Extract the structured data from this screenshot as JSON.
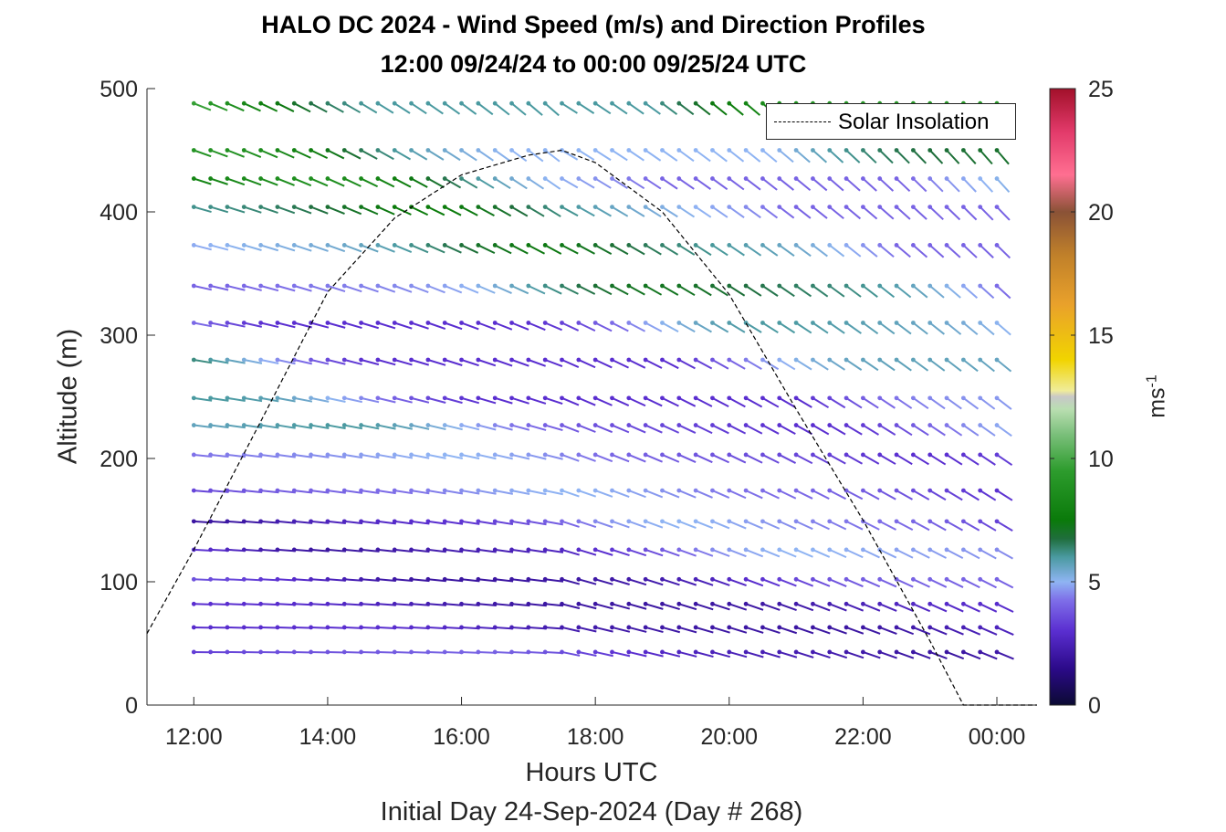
{
  "chart_data": {
    "type": "wind_barb_profile",
    "title": "HALO DC 2024 - Wind Speed (m/s) and Direction Profiles",
    "subtitle": "12:00 09/24/24 to 00:00 09/25/24  UTC",
    "xlabel": "Hours UTC",
    "x_sublabel": "Initial Day 24-Sep-2024 (Day # 268)",
    "ylabel": "Altitude (m)",
    "xlim": [
      11.3,
      24.6
    ],
    "ylim": [
      0,
      500
    ],
    "x_ticks": [
      {
        "value": 12,
        "label": "12:00"
      },
      {
        "value": 14,
        "label": "14:00"
      },
      {
        "value": 16,
        "label": "16:00"
      },
      {
        "value": 18,
        "label": "18:00"
      },
      {
        "value": 20,
        "label": "20:00"
      },
      {
        "value": 22,
        "label": "22:00"
      },
      {
        "value": 24,
        "label": "00:00"
      }
    ],
    "y_ticks": [
      {
        "value": 0,
        "label": "0"
      },
      {
        "value": 100,
        "label": "100"
      },
      {
        "value": 200,
        "label": "200"
      },
      {
        "value": 300,
        "label": "300"
      },
      {
        "value": 400,
        "label": "400"
      },
      {
        "value": 500,
        "label": "500"
      }
    ],
    "colorbar": {
      "label": "ms",
      "label_exponent": "-1",
      "range": [
        0,
        25
      ],
      "ticks": [
        {
          "value": 0,
          "label": "0"
        },
        {
          "value": 5,
          "label": "5"
        },
        {
          "value": 10,
          "label": "10"
        },
        {
          "value": 15,
          "label": "15"
        },
        {
          "value": 20,
          "label": "20"
        },
        {
          "value": 25,
          "label": "25"
        }
      ]
    },
    "legend": {
      "entries": [
        "Solar Insolation"
      ],
      "location": "top-right"
    },
    "insolation_curve": {
      "style": "dashed-black",
      "points": [
        [
          11.3,
          58
        ],
        [
          12.0,
          126
        ],
        [
          13.0,
          230
        ],
        [
          14.0,
          335
        ],
        [
          15.0,
          395
        ],
        [
          16.0,
          430
        ],
        [
          17.0,
          446
        ],
        [
          17.5,
          450
        ],
        [
          18.0,
          440
        ],
        [
          19.0,
          400
        ],
        [
          20.0,
          333
        ],
        [
          21.0,
          240
        ],
        [
          22.0,
          150
        ],
        [
          23.0,
          52
        ],
        [
          23.5,
          0
        ],
        [
          24.6,
          0
        ]
      ]
    },
    "altitudes_m": [
      43,
      63,
      82,
      102,
      126,
      149,
      174,
      203,
      227,
      249,
      280,
      310,
      340,
      373,
      404,
      427,
      450,
      488
    ],
    "time_range_h": [
      12.0,
      24.0
    ],
    "time_step_h": 0.25,
    "wind_profile_summary": {
      "barbs_per_row": 49,
      "speed_ranges_by_altitude": [
        {
          "altitude_m": 43,
          "speed_ms": [
            2,
            4
          ]
        },
        {
          "altitude_m": 63,
          "speed_ms": [
            2,
            3
          ]
        },
        {
          "altitude_m": 82,
          "speed_ms": [
            2,
            3
          ]
        },
        {
          "altitude_m": 102,
          "speed_ms": [
            2,
            4
          ]
        },
        {
          "altitude_m": 126,
          "speed_ms": [
            2,
            5
          ]
        },
        {
          "altitude_m": 149,
          "speed_ms": [
            2,
            5
          ]
        },
        {
          "altitude_m": 174,
          "speed_ms": [
            3,
            5
          ]
        },
        {
          "altitude_m": 203,
          "speed_ms": [
            3,
            5
          ]
        },
        {
          "altitude_m": 227,
          "speed_ms": [
            3,
            6
          ]
        },
        {
          "altitude_m": 249,
          "speed_ms": [
            3,
            6
          ]
        },
        {
          "altitude_m": 280,
          "speed_ms": [
            3,
            7
          ]
        },
        {
          "altitude_m": 310,
          "speed_ms": [
            3,
            7
          ]
        },
        {
          "altitude_m": 340,
          "speed_ms": [
            4,
            8
          ]
        },
        {
          "altitude_m": 373,
          "speed_ms": [
            4,
            8
          ]
        },
        {
          "altitude_m": 404,
          "speed_ms": [
            4,
            8
          ]
        },
        {
          "altitude_m": 427,
          "speed_ms": [
            4,
            9
          ]
        },
        {
          "altitude_m": 450,
          "speed_ms": [
            5,
            9
          ]
        },
        {
          "altitude_m": 488,
          "speed_ms": [
            6,
            11
          ]
        }
      ]
    },
    "grid": false
  }
}
